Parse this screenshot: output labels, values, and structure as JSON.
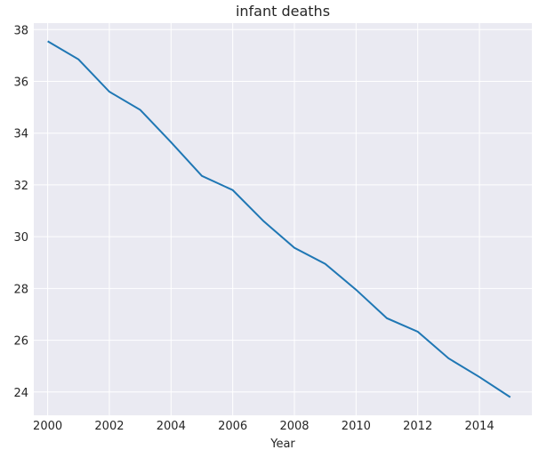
{
  "chart_data": {
    "type": "line",
    "title": "infant deaths",
    "xlabel": "Year",
    "ylabel": "",
    "xlim": [
      1999.55,
      2015.7
    ],
    "ylim": [
      23.1,
      38.25
    ],
    "xticks": [
      2000,
      2002,
      2004,
      2006,
      2008,
      2010,
      2012,
      2014
    ],
    "yticks": [
      24,
      26,
      28,
      30,
      32,
      34,
      36,
      38
    ],
    "grid": true,
    "colors": {
      "background": "#eaeaf2",
      "grid": "#ffffff",
      "line": "#1f77b4"
    },
    "series": [
      {
        "x": [
          2000,
          2001,
          2002,
          2003,
          2004,
          2005,
          2006,
          2007,
          2008,
          2009,
          2010,
          2011,
          2012,
          2013,
          2014,
          2015
        ],
        "values": [
          37.55,
          36.85,
          35.6,
          34.9,
          33.65,
          32.35,
          31.8,
          30.6,
          29.57,
          28.95,
          27.95,
          26.85,
          26.33,
          25.3,
          24.58,
          23.8
        ]
      }
    ]
  }
}
